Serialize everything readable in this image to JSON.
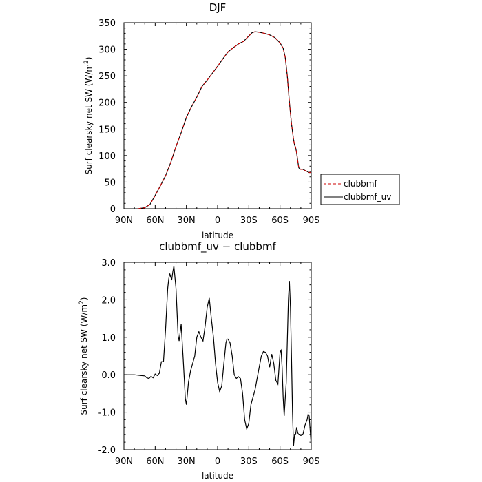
{
  "chart_data": [
    {
      "type": "line",
      "title": "DJF",
      "xlabel": "latitude",
      "ylabel": "Surf clearsky net SW (W/m²)",
      "ylabel_main": "Surf clearsky net SW (W/m",
      "ylabel_sup": "2",
      "ylabel_end": ")",
      "xlim": [
        -90,
        90
      ],
      "ylim": [
        0,
        350
      ],
      "x_ticks": [
        -90,
        -60,
        -30,
        0,
        30,
        60,
        90
      ],
      "x_tick_labels": [
        "90N",
        "60N",
        "30N",
        "0",
        "30S",
        "60S",
        "90S"
      ],
      "y_ticks": [
        0,
        50,
        100,
        150,
        200,
        250,
        300,
        350
      ],
      "y_tick_labels": [
        "0",
        "50",
        "100",
        "150",
        "200",
        "250",
        "300",
        "350"
      ],
      "x": [
        -76,
        -70,
        -65,
        -60,
        -55,
        -50,
        -45,
        -40,
        -35,
        -30,
        -25,
        -20,
        -15,
        -10,
        -5,
        0,
        5,
        10,
        15,
        20,
        25,
        30,
        33,
        36,
        40,
        45,
        50,
        55,
        60,
        63,
        65,
        67,
        69,
        71,
        72,
        73,
        74,
        75,
        76,
        77,
        78,
        79,
        80,
        82,
        84,
        86,
        88,
        90
      ],
      "series": [
        {
          "name": "clubbmf",
          "color": "#cc0000",
          "dash": "dashed",
          "values": [
            0,
            2,
            8,
            25,
            43,
            62,
            87,
            117,
            143,
            172,
            192,
            210,
            230,
            242,
            255,
            268,
            282,
            295,
            303,
            310,
            315,
            325,
            331,
            333,
            332,
            330,
            327,
            322,
            312,
            302,
            285,
            250,
            200,
            160,
            145,
            130,
            120,
            115,
            105,
            90,
            77,
            75,
            74,
            74,
            72,
            70,
            68,
            68
          ]
        },
        {
          "name": "clubbmf_uv",
          "color": "#000000",
          "dash": "solid",
          "values": [
            0,
            2,
            8,
            25,
            43,
            62,
            87,
            117,
            143,
            172,
            192,
            210,
            230,
            242,
            255,
            268,
            282,
            295,
            303,
            310,
            315,
            325,
            331,
            333,
            332,
            330,
            327,
            322,
            312,
            302,
            285,
            250,
            200,
            160,
            145,
            130,
            120,
            115,
            105,
            90,
            77,
            75,
            74,
            74,
            72,
            70,
            68,
            68
          ]
        }
      ],
      "legend": {
        "placement": "right"
      }
    },
    {
      "type": "line",
      "title": "clubbmf_uv − clubbmf",
      "xlabel": "latitude",
      "ylabel": "Surf clearsky net SW (W/m²)",
      "ylabel_main": "Surf clearsky net SW (W/m",
      "ylabel_sup": "2",
      "ylabel_end": ")",
      "xlim": [
        -90,
        90
      ],
      "ylim": [
        -2.0,
        3.0
      ],
      "x_ticks": [
        -90,
        -60,
        -30,
        0,
        30,
        60,
        90
      ],
      "x_tick_labels": [
        "90N",
        "60N",
        "30N",
        "0",
        "30S",
        "60S",
        "90S"
      ],
      "y_ticks": [
        -2,
        -1,
        0,
        1,
        2,
        3
      ],
      "y_tick_labels": [
        "-2.0",
        "-1.0",
        "0.0",
        "1.0",
        "2.0",
        "3.0"
      ],
      "x": [
        -90,
        -80,
        -74,
        -70,
        -68,
        -66,
        -64,
        -62,
        -60,
        -58,
        -56,
        -54,
        -52,
        -50,
        -48,
        -47,
        -46,
        -45,
        -44,
        -43,
        -42,
        -40,
        -38,
        -37,
        -35,
        -33,
        -31,
        -30,
        -28,
        -26,
        -24,
        -22,
        -20,
        -18,
        -16,
        -14,
        -12,
        -10,
        -8,
        -6,
        -4,
        -2,
        0,
        2,
        4,
        6,
        8,
        9,
        10,
        12,
        14,
        16,
        18,
        20,
        22,
        24,
        26,
        28,
        30,
        32,
        34,
        36,
        38,
        40,
        42,
        44,
        46,
        48,
        50,
        52,
        54,
        56,
        58,
        60,
        61,
        62,
        63,
        64,
        66,
        68,
        69,
        70,
        71,
        72,
        73,
        74,
        75,
        76,
        77,
        78,
        80,
        82,
        84,
        86,
        87,
        88,
        89,
        90
      ],
      "series": [
        {
          "name": "clubbmf_uv − clubbmf",
          "color": "#000000",
          "dash": "solid",
          "values": [
            0.0,
            0.0,
            -0.02,
            -0.03,
            -0.08,
            -0.1,
            -0.04,
            -0.08,
            0.02,
            -0.02,
            0.04,
            0.35,
            0.35,
            1.2,
            2.3,
            2.55,
            2.7,
            2.6,
            2.55,
            2.75,
            2.9,
            2.3,
            1.05,
            0.9,
            1.35,
            0.4,
            -0.65,
            -0.8,
            -0.2,
            0.1,
            0.3,
            0.5,
            1.0,
            1.15,
            1.0,
            0.9,
            1.3,
            1.8,
            2.05,
            1.5,
            1.0,
            0.3,
            -0.2,
            -0.45,
            -0.3,
            0.3,
            0.85,
            0.95,
            0.95,
            0.85,
            0.5,
            0.0,
            -0.1,
            -0.05,
            -0.1,
            -0.5,
            -1.2,
            -1.45,
            -1.3,
            -0.8,
            -0.6,
            -0.4,
            -0.1,
            0.2,
            0.5,
            0.62,
            0.6,
            0.5,
            0.2,
            0.55,
            0.3,
            -0.15,
            -0.25,
            0.6,
            0.65,
            0.2,
            -0.6,
            -1.1,
            -0.2,
            2.0,
            2.5,
            1.8,
            0.5,
            -1.0,
            -1.9,
            -1.6,
            -1.6,
            -1.4,
            -1.55,
            -1.6,
            -1.62,
            -1.6,
            -1.35,
            -1.2,
            -1.05,
            -1.1,
            -1.5,
            -1.9
          ]
        }
      ]
    }
  ]
}
